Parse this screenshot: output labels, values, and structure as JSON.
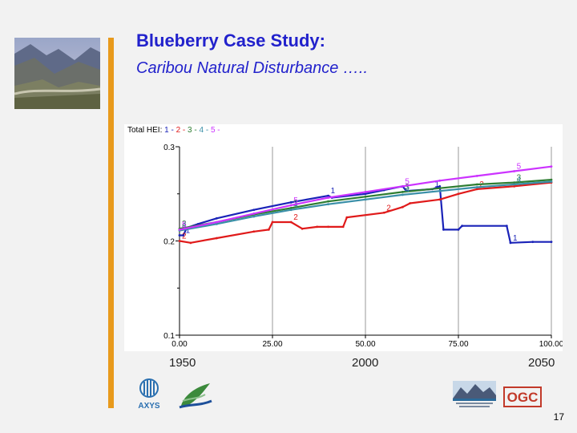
{
  "slide": {
    "title": "Blueberry Case Study:",
    "subtitle": "Caribou Natural Disturbance …..",
    "page_number": "17",
    "accent_color": "#e89a1c",
    "title_color": "#2222cc"
  },
  "timeline": {
    "year_start": "1950",
    "year_mid": "2000",
    "year_end": "2050"
  },
  "logos": [
    "axys-logo",
    "leaf-swoosh-logo",
    "northern-rockies-logo",
    "ogc-logo"
  ],
  "chart_data": {
    "type": "line",
    "title": "Total HEI:",
    "legend": [
      "1",
      "2",
      "3",
      "4",
      "5"
    ],
    "xlim": [
      0,
      100
    ],
    "ylim": [
      0.1,
      0.3
    ],
    "x_ticks": [
      "0.00",
      "25.00",
      "50.00",
      "75.00",
      "100.00"
    ],
    "y_ticks": [
      "0.1",
      "0.2",
      "0.3"
    ],
    "series": [
      {
        "name": "1",
        "color": "#1a23b8",
        "x": [
          0,
          1,
          2,
          5,
          10,
          20,
          30,
          40,
          41,
          50,
          55,
          60,
          61,
          68,
          70,
          71,
          75,
          76,
          88,
          89,
          95,
          100
        ],
        "y": [
          0.206,
          0.206,
          0.214,
          0.218,
          0.224,
          0.233,
          0.241,
          0.248,
          0.246,
          0.25,
          0.254,
          0.258,
          0.253,
          0.255,
          0.258,
          0.212,
          0.212,
          0.216,
          0.216,
          0.198,
          0.199,
          0.199
        ]
      },
      {
        "name": "2",
        "color": "#e01a1a",
        "x": [
          0,
          3,
          10,
          20,
          24,
          25,
          30,
          33,
          37,
          40,
          44,
          45,
          55,
          60,
          62,
          70,
          75,
          80,
          90,
          100
        ],
        "y": [
          0.2,
          0.198,
          0.203,
          0.21,
          0.212,
          0.22,
          0.22,
          0.213,
          0.215,
          0.215,
          0.215,
          0.225,
          0.23,
          0.236,
          0.24,
          0.244,
          0.25,
          0.255,
          0.258,
          0.262
        ]
      },
      {
        "name": "3",
        "color": "#2e7d32",
        "x": [
          0,
          10,
          20,
          30,
          40,
          50,
          60,
          70,
          80,
          90,
          100
        ],
        "y": [
          0.213,
          0.22,
          0.228,
          0.235,
          0.242,
          0.247,
          0.252,
          0.256,
          0.26,
          0.262,
          0.265
        ]
      },
      {
        "name": "4",
        "color": "#3a8fa8",
        "x": [
          0,
          10,
          20,
          30,
          40,
          50,
          60,
          70,
          80,
          90,
          100
        ],
        "y": [
          0.211,
          0.218,
          0.226,
          0.233,
          0.239,
          0.244,
          0.249,
          0.253,
          0.257,
          0.26,
          0.263
        ]
      },
      {
        "name": "5",
        "color": "#cc33ff",
        "x": [
          0,
          10,
          20,
          30,
          40,
          50,
          60,
          70,
          80,
          90,
          100
        ],
        "y": [
          0.212,
          0.22,
          0.229,
          0.238,
          0.246,
          0.252,
          0.258,
          0.264,
          0.269,
          0.274,
          0.279
        ]
      }
    ]
  }
}
